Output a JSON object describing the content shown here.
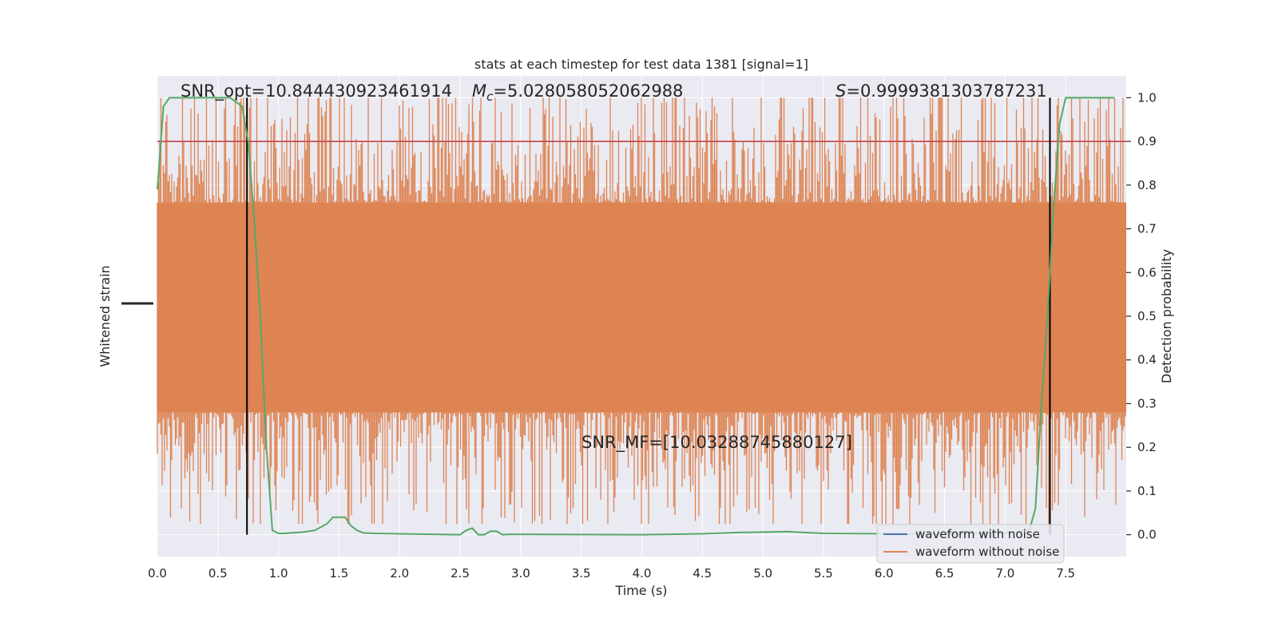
{
  "chart_data": {
    "type": "line",
    "title": "stats at each timestep for test data 1381 [signal=1]",
    "xlabel": "Time (s)",
    "ylabel_left": "Whitened strain",
    "ylabel_right": "Detection probability",
    "xlim": [
      0.0,
      8.0
    ],
    "ylim_right": [
      -0.05,
      1.05
    ],
    "x_ticks": [
      "0.0",
      "0.5",
      "1.0",
      "1.5",
      "2.0",
      "2.5",
      "3.0",
      "3.5",
      "4.0",
      "4.5",
      "5.0",
      "5.5",
      "6.0",
      "6.5",
      "7.0",
      "7.5"
    ],
    "x_tick_values": [
      0.0,
      0.5,
      1.0,
      1.5,
      2.0,
      2.5,
      3.0,
      3.5,
      4.0,
      4.5,
      5.0,
      5.5,
      6.0,
      6.5,
      7.0,
      7.5
    ],
    "y_right_ticks": [
      "0.0",
      "0.1",
      "0.2",
      "0.3",
      "0.4",
      "0.5",
      "0.6",
      "0.7",
      "0.8",
      "0.9",
      "1.0"
    ],
    "y_right_tick_values": [
      0.0,
      0.1,
      0.2,
      0.3,
      0.4,
      0.5,
      0.6,
      0.7,
      0.8,
      0.9,
      1.0
    ],
    "grid": true,
    "legend_position": "lower right",
    "legend": [
      {
        "name": "waveform with noise",
        "color": "#4c72b0"
      },
      {
        "name": "waveform without noise",
        "color": "#dd8452"
      }
    ],
    "colors": {
      "background": "#eaeaf2",
      "grid": "#ffffff",
      "noise": "#dd8452",
      "probability": "#55a868",
      "threshold": "#c44e52",
      "markers": "#000000"
    },
    "threshold": 0.9,
    "vertical_markers": [
      0.74,
      7.37
    ],
    "annotations": {
      "snr_opt": "SNR_opt=10.844430923461914",
      "mc": "=5.028058052062988",
      "mc_symbol": "M",
      "mc_subscript": "c",
      "s": "=0.9999381303787231",
      "s_symbol": "S",
      "snr_mf": "SNR_MF=[10.03288745880127]"
    },
    "noise_band": {
      "center": 0.52,
      "amplitude": 0.24,
      "peak_max": 1.0,
      "trough_min": 0.025
    },
    "series": [
      {
        "name": "Detection probability",
        "x": [
          0.0,
          0.05,
          0.1,
          0.15,
          0.2,
          0.3,
          0.4,
          0.5,
          0.6,
          0.65,
          0.7,
          0.75,
          0.8,
          0.85,
          0.9,
          0.95,
          1.0,
          1.05,
          1.1,
          1.2,
          1.3,
          1.4,
          1.45,
          1.5,
          1.55,
          1.6,
          1.65,
          1.7,
          1.8,
          2.0,
          2.5,
          2.55,
          2.6,
          2.65,
          2.7,
          2.75,
          2.8,
          2.85,
          2.9,
          3.0,
          4.0,
          4.5,
          4.8,
          5.0,
          5.2,
          5.5,
          6.0,
          6.5,
          7.0,
          7.2,
          7.25,
          7.3,
          7.35,
          7.4,
          7.45,
          7.5,
          7.55,
          7.6,
          7.7,
          7.8,
          7.9
        ],
        "values": [
          0.79,
          0.98,
          1.0,
          1.0,
          1.0,
          1.0,
          1.0,
          1.0,
          1.0,
          0.99,
          0.98,
          0.9,
          0.72,
          0.5,
          0.2,
          0.01,
          0.003,
          0.003,
          0.004,
          0.006,
          0.01,
          0.025,
          0.04,
          0.04,
          0.04,
          0.02,
          0.01,
          0.004,
          0.003,
          0.002,
          0.0,
          0.01,
          0.015,
          0.0,
          0.0,
          0.008,
          0.008,
          0.0,
          0.001,
          0.001,
          0.0,
          0.002,
          0.005,
          0.006,
          0.007,
          0.003,
          0.002,
          0.001,
          0.004,
          0.01,
          0.06,
          0.3,
          0.5,
          0.75,
          0.94,
          1.0,
          1.0,
          1.0,
          1.0,
          1.0,
          1.0
        ]
      }
    ]
  }
}
